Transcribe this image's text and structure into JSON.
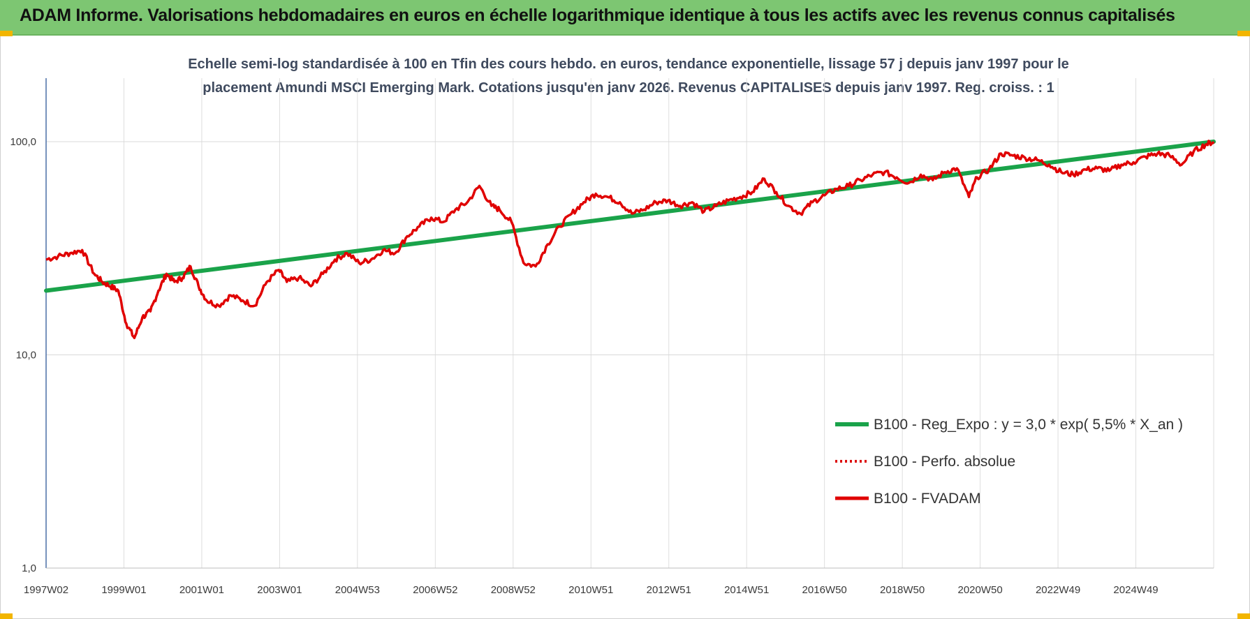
{
  "banner": {
    "title": "ADAM Informe. Valorisations hebdomadaires en euros en échelle logarithmique identique à tous les actifs avec les revenus connus capitalisés"
  },
  "chart_data": {
    "type": "line",
    "title_line1": "Echelle semi-log standardisée à 100 en Tfin des cours hebdo. en euros, tendance exponentielle, lissage 57 j depuis janv 1997 pour le",
    "title_line2": "placement Amundi MSCI Emerging Mark. Cotations jusqu'en janv 2026. Revenus CAPITALISES depuis janv 1997. Reg. croiss. : 1",
    "y_scale": "log",
    "ylim": [
      1,
      100
    ],
    "y_ticks": [
      "100,0",
      "10,0",
      "1,0"
    ],
    "x_ticks": [
      "1997W02",
      "1999W01",
      "2001W01",
      "2003W01",
      "2004W53",
      "2006W52",
      "2008W52",
      "2010W51",
      "2012W51",
      "2014W51",
      "2016W50",
      "2018W50",
      "2020W50",
      "2022W49",
      "2024W49"
    ],
    "xlim": [
      1997.0,
      2026.1
    ],
    "grid": true,
    "legend_position": "bottom-right",
    "colors": {
      "trend": "#1aa34a",
      "perf": "#dd1111",
      "fvadam": "#e00000"
    },
    "series": [
      {
        "name": "B100 - Reg_Expo : y = 3,0 * exp( 5,5% *  X_an )",
        "style": "solid-green",
        "x": [
          1997.0,
          2026.1
        ],
        "values": [
          20.0,
          100.0
        ]
      },
      {
        "name": "B100 - Perfo. absolue",
        "style": "dotted-red",
        "x": [],
        "values": []
      },
      {
        "name": "B100 - FVADAM",
        "style": "solid-red",
        "x": [
          1997.0,
          1997.3,
          1997.6,
          1997.9,
          1998.2,
          1998.4,
          1998.6,
          1998.8,
          1999.0,
          1999.2,
          1999.4,
          1999.6,
          1999.8,
          2000.0,
          2000.2,
          2000.4,
          2000.6,
          2000.8,
          2001.0,
          2001.3,
          2001.6,
          2001.9,
          2002.2,
          2002.5,
          2002.8,
          2003.0,
          2003.3,
          2003.6,
          2003.9,
          2004.2,
          2004.5,
          2004.8,
          2005.1,
          2005.4,
          2005.7,
          2006.0,
          2006.3,
          2006.6,
          2006.9,
          2007.2,
          2007.5,
          2007.8,
          2008.1,
          2008.3,
          2008.6,
          2008.9,
          2009.2,
          2009.5,
          2009.8,
          2010.1,
          2010.4,
          2010.7,
          2011.0,
          2011.3,
          2011.6,
          2011.9,
          2012.2,
          2012.5,
          2012.8,
          2013.1,
          2013.4,
          2013.7,
          2014.0,
          2014.3,
          2014.6,
          2014.9,
          2015.2,
          2015.5,
          2015.8,
          2016.1,
          2016.4,
          2016.7,
          2017.0,
          2017.3,
          2017.6,
          2017.9,
          2018.2,
          2018.5,
          2018.8,
          2019.1,
          2019.4,
          2019.7,
          2020.0,
          2020.2,
          2020.5,
          2020.8,
          2021.1,
          2021.4,
          2021.7,
          2022.0,
          2022.3,
          2022.6,
          2022.9,
          2023.2,
          2023.5,
          2023.8,
          2024.1,
          2024.4,
          2024.7,
          2025.0,
          2025.3,
          2025.6,
          2025.9,
          2026.1
        ],
        "values": [
          28,
          29,
          30,
          31,
          24,
          22,
          21,
          20,
          14,
          12,
          15,
          16,
          20,
          24,
          22,
          23,
          26,
          21,
          18,
          17,
          19,
          18,
          17,
          22,
          25,
          22,
          23,
          21,
          24,
          28,
          30,
          27,
          28,
          31,
          30,
          36,
          40,
          44,
          42,
          48,
          52,
          62,
          50,
          48,
          42,
          27,
          26,
          33,
          40,
          46,
          52,
          57,
          55,
          52,
          46,
          48,
          52,
          53,
          50,
          52,
          47,
          50,
          53,
          55,
          58,
          67,
          58,
          50,
          46,
          52,
          56,
          60,
          62,
          66,
          70,
          72,
          68,
          64,
          70,
          66,
          72,
          75,
          55,
          68,
          74,
          88,
          86,
          84,
          82,
          78,
          72,
          70,
          74,
          75,
          73,
          78,
          80,
          85,
          88,
          86,
          78,
          90,
          97,
          100
        ]
      }
    ]
  }
}
